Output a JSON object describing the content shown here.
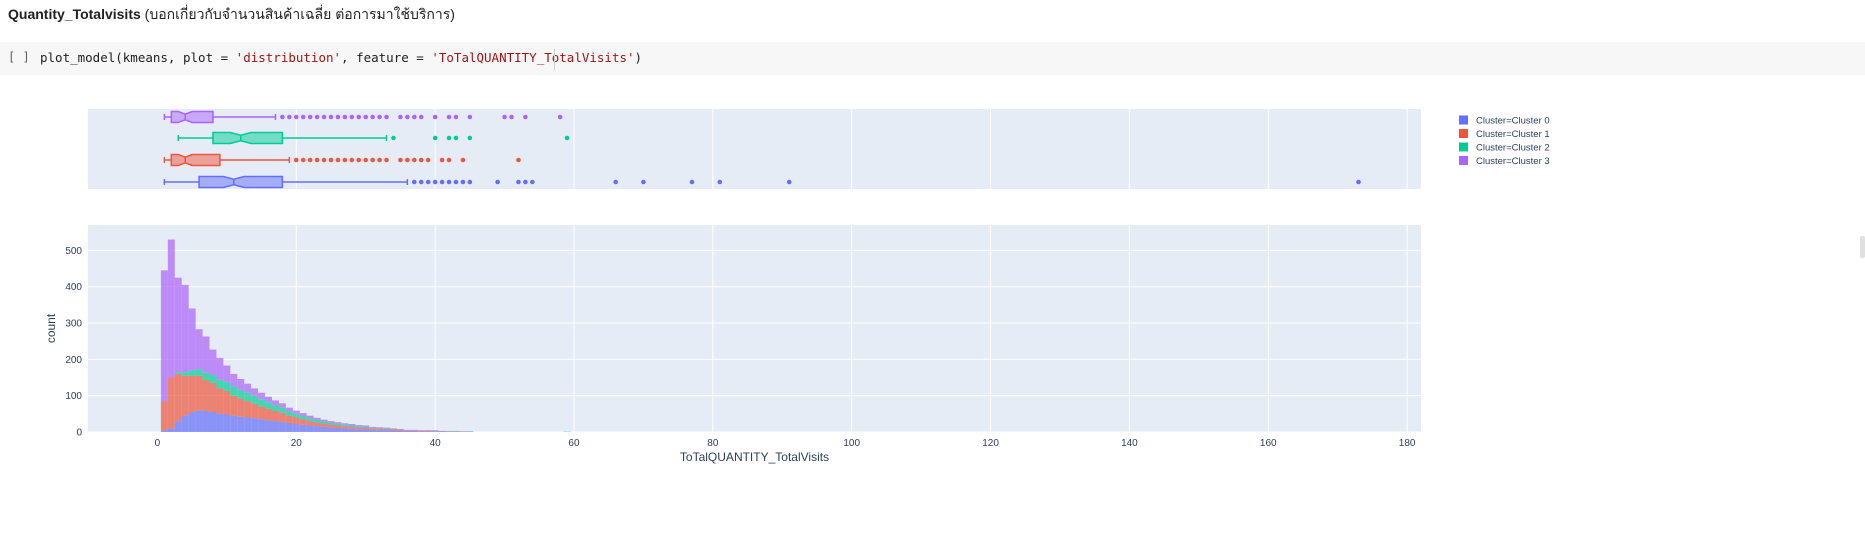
{
  "heading": {
    "bold": "Quantity_Totalvisits",
    "rest": " (บอกเกี่ยวกับจำนวนสินค้าเฉลี่ย ต่อการมาใช้บริการ)"
  },
  "code_cell": {
    "gutter": "[ ]",
    "code_parts": [
      {
        "t": "plot_model(kmeans, plot = ",
        "s": false
      },
      {
        "t": "'distribution'",
        "s": true
      },
      {
        "t": ", feature = ",
        "s": false
      },
      {
        "t": "'ToTalQUANTITY_TotalVisits'",
        "s": true
      },
      {
        "t": ")",
        "s": false
      }
    ]
  },
  "chart_data": {
    "type": "bar",
    "xlabel": "ToTalQUANTITY_TotalVisits",
    "ylabel": "count",
    "xlim": [
      -10,
      182
    ],
    "ylim": [
      0,
      570
    ],
    "xticks": [
      0,
      20,
      40,
      60,
      80,
      100,
      120,
      140,
      160,
      180
    ],
    "yticks": [
      0,
      100,
      200,
      300,
      400,
      500
    ],
    "bin_width": 1,
    "stacked": true,
    "legend_position": "right",
    "series": [
      {
        "name": "Cluster=Cluster 0",
        "color": "#636efa",
        "box": {
          "min": 1,
          "q1": 6,
          "median": 11,
          "q3": 18,
          "max": 36,
          "notch": [
            9.5,
            12.5
          ],
          "outliers": [
            37,
            38,
            39,
            40,
            41,
            42,
            43,
            44,
            45,
            49,
            52,
            53,
            54,
            66,
            70,
            77,
            81,
            91,
            173
          ]
        },
        "x": [
          1,
          2,
          3,
          4,
          5,
          6,
          7,
          8,
          9,
          10,
          11,
          12,
          13,
          14,
          15,
          16,
          17,
          18,
          19,
          20,
          21,
          22,
          23,
          24,
          25,
          26,
          27,
          28,
          29,
          30,
          31,
          32,
          33,
          34,
          35,
          36,
          37,
          38,
          39,
          40,
          41,
          42,
          43,
          44,
          45
        ],
        "values": [
          5,
          10,
          30,
          45,
          55,
          60,
          58,
          55,
          50,
          48,
          45,
          42,
          40,
          38,
          35,
          32,
          30,
          28,
          25,
          22,
          20,
          18,
          16,
          14,
          12,
          11,
          10,
          9,
          8,
          7,
          6,
          5,
          5,
          4,
          4,
          3,
          3,
          2,
          2,
          2,
          2,
          1,
          1,
          1,
          1
        ]
      },
      {
        "name": "Cluster=Cluster 1",
        "color": "#ef553b",
        "box": {
          "min": 1,
          "q1": 2,
          "median": 4,
          "q3": 9,
          "max": 19,
          "notch": [
            3,
            5
          ],
          "outliers": [
            20,
            21,
            22,
            23,
            24,
            25,
            26,
            27,
            28,
            29,
            30,
            31,
            32,
            33,
            35,
            36,
            37,
            38,
            39,
            41,
            42,
            44,
            52
          ]
        },
        "x": [
          1,
          2,
          3,
          4,
          5,
          6,
          7,
          8,
          9,
          10,
          11,
          12,
          13,
          14,
          15,
          16,
          17,
          18,
          19,
          20,
          21,
          22,
          23,
          24,
          25,
          26,
          27,
          28,
          29,
          30,
          31,
          32,
          33,
          34,
          35,
          36,
          37,
          38,
          39,
          40,
          41,
          42,
          43,
          44
        ],
        "values": [
          80,
          140,
          130,
          110,
          100,
          95,
          85,
          80,
          70,
          65,
          55,
          50,
          45,
          40,
          35,
          32,
          28,
          25,
          20,
          18,
          15,
          12,
          10,
          9,
          8,
          7,
          6,
          6,
          5,
          5,
          4,
          4,
          3,
          3,
          3,
          2,
          2,
          2,
          2,
          1,
          1,
          1,
          1,
          1
        ]
      },
      {
        "name": "Cluster=Cluster 2",
        "color": "#00cc96",
        "box": {
          "min": 3,
          "q1": 8,
          "median": 12,
          "q3": 18,
          "max": 33,
          "notch": [
            10.5,
            13.5
          ],
          "outliers": [
            34,
            40,
            42,
            43,
            45,
            59
          ]
        },
        "x": [
          3,
          4,
          5,
          6,
          7,
          8,
          9,
          10,
          11,
          12,
          13,
          14,
          15,
          16,
          17,
          18,
          19,
          20,
          21,
          22,
          23,
          24,
          25,
          26,
          27,
          28,
          29,
          30,
          31,
          32,
          33,
          34,
          40,
          42,
          43,
          45,
          59
        ],
        "values": [
          5,
          10,
          15,
          18,
          20,
          22,
          24,
          25,
          25,
          24,
          23,
          22,
          20,
          18,
          16,
          14,
          12,
          10,
          9,
          8,
          7,
          6,
          5,
          5,
          4,
          4,
          3,
          3,
          2,
          2,
          2,
          1,
          1,
          1,
          1,
          1,
          1
        ]
      },
      {
        "name": "Cluster=Cluster 3",
        "color": "#ab63fa",
        "box": {
          "min": 1,
          "q1": 2,
          "median": 4,
          "q3": 8,
          "max": 17,
          "notch": [
            3,
            5
          ],
          "outliers": [
            18,
            19,
            20,
            21,
            22,
            23,
            24,
            25,
            26,
            27,
            28,
            29,
            30,
            31,
            32,
            33,
            35,
            36,
            37,
            38,
            40,
            42,
            43,
            45,
            50,
            51,
            53,
            58
          ]
        },
        "x": [
          1,
          2,
          3,
          4,
          5,
          6,
          7,
          8,
          9,
          10,
          11,
          12,
          13,
          14,
          15,
          16,
          17,
          18,
          19,
          20,
          21,
          22,
          23,
          24,
          25,
          26,
          27,
          28,
          29,
          30,
          31,
          32,
          33,
          34,
          35,
          36,
          37,
          38,
          39,
          40
        ],
        "values": [
          360,
          380,
          260,
          240,
          170,
          110,
          100,
          70,
          60,
          45,
          35,
          30,
          25,
          20,
          18,
          15,
          13,
          12,
          10,
          9,
          8,
          7,
          6,
          5,
          5,
          4,
          4,
          3,
          3,
          3,
          2,
          2,
          2,
          2,
          1,
          1,
          1,
          1,
          1,
          1
        ]
      }
    ]
  }
}
